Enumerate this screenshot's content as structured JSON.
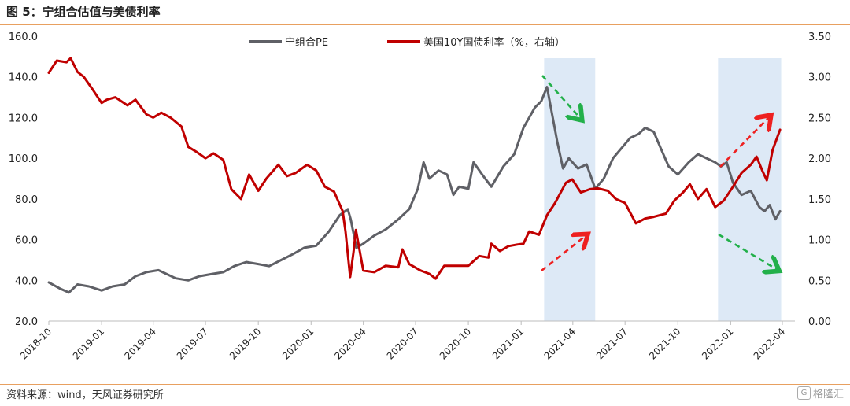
{
  "header": {
    "title": "图 5：宁组合估值与美债利率"
  },
  "footer": {
    "source": "资料来源：wind，天风证券研究所",
    "watermark": "格隆汇"
  },
  "colors": {
    "pe": "#5f6066",
    "yield": "#c00000",
    "highlight": "#dde9f6",
    "arrow_green": "#22b04a",
    "arrow_red": "#ee2020",
    "axis": "#bdbdbd"
  },
  "chart_data": {
    "type": "line",
    "title": "",
    "x_ticks": [
      "2018-10",
      "2019-01",
      "2019-04",
      "2019-07",
      "2019-10",
      "2020-01",
      "2020-04",
      "2020-07",
      "2020-10",
      "2021-01",
      "2021-04",
      "2021-07",
      "2021-10",
      "2022-01",
      "2022-04"
    ],
    "y_left": {
      "range": [
        20,
        160
      ],
      "ticks": [
        "20.0",
        "40.0",
        "60.0",
        "80.0",
        "100.0",
        "120.0",
        "140.0",
        "160.0"
      ]
    },
    "y_right": {
      "range": [
        0,
        3.5
      ],
      "ticks": [
        "0.00",
        "0.50",
        "1.00",
        "1.50",
        "2.00",
        "2.50",
        "3.00",
        "3.50"
      ]
    },
    "grid": false,
    "legend_position": "top",
    "series": [
      {
        "name": "宁组合PE",
        "axis": "left",
        "points": [
          [
            "2018-10-01",
            39
          ],
          [
            "2018-10-20",
            36
          ],
          [
            "2018-11-05",
            34
          ],
          [
            "2018-11-20",
            38
          ],
          [
            "2018-12-10",
            37
          ],
          [
            "2019-01-01",
            35
          ],
          [
            "2019-01-20",
            37
          ],
          [
            "2019-02-10",
            38
          ],
          [
            "2019-03-01",
            42
          ],
          [
            "2019-03-20",
            44
          ],
          [
            "2019-04-10",
            45
          ],
          [
            "2019-04-25",
            43
          ],
          [
            "2019-05-10",
            41
          ],
          [
            "2019-06-01",
            40
          ],
          [
            "2019-06-20",
            42
          ],
          [
            "2019-07-10",
            43
          ],
          [
            "2019-08-01",
            44
          ],
          [
            "2019-08-20",
            47
          ],
          [
            "2019-09-10",
            49
          ],
          [
            "2019-10-01",
            48
          ],
          [
            "2019-10-20",
            47
          ],
          [
            "2019-11-10",
            50
          ],
          [
            "2019-12-01",
            53
          ],
          [
            "2019-12-20",
            56
          ],
          [
            "2020-01-10",
            57
          ],
          [
            "2020-02-01",
            64
          ],
          [
            "2020-02-20",
            72
          ],
          [
            "2020-03-05",
            75
          ],
          [
            "2020-03-10",
            70
          ],
          [
            "2020-03-20",
            56
          ],
          [
            "2020-04-01",
            58
          ],
          [
            "2020-04-20",
            62
          ],
          [
            "2020-05-10",
            65
          ],
          [
            "2020-06-01",
            70
          ],
          [
            "2020-06-20",
            75
          ],
          [
            "2020-07-05",
            85
          ],
          [
            "2020-07-15",
            98
          ],
          [
            "2020-07-25",
            90
          ],
          [
            "2020-08-10",
            94
          ],
          [
            "2020-08-25",
            92
          ],
          [
            "2020-09-05",
            82
          ],
          [
            "2020-09-15",
            86
          ],
          [
            "2020-10-01",
            85
          ],
          [
            "2020-10-10",
            98
          ],
          [
            "2020-10-25",
            92
          ],
          [
            "2020-11-10",
            86
          ],
          [
            "2020-12-01",
            96
          ],
          [
            "2020-12-20",
            102
          ],
          [
            "2021-01-05",
            115
          ],
          [
            "2021-01-25",
            125
          ],
          [
            "2021-02-05",
            128
          ],
          [
            "2021-02-15",
            135
          ],
          [
            "2021-02-25",
            120
          ],
          [
            "2021-03-05",
            108
          ],
          [
            "2021-03-15",
            95
          ],
          [
            "2021-03-25",
            100
          ],
          [
            "2021-04-10",
            95
          ],
          [
            "2021-04-25",
            97
          ],
          [
            "2021-05-10",
            85
          ],
          [
            "2021-05-25",
            90
          ],
          [
            "2021-06-10",
            100
          ],
          [
            "2021-06-25",
            105
          ],
          [
            "2021-07-10",
            110
          ],
          [
            "2021-07-25",
            112
          ],
          [
            "2021-08-05",
            115
          ],
          [
            "2021-08-20",
            113
          ],
          [
            "2021-09-01",
            105
          ],
          [
            "2021-09-15",
            96
          ],
          [
            "2021-10-01",
            92
          ],
          [
            "2021-10-20",
            98
          ],
          [
            "2021-11-05",
            102
          ],
          [
            "2021-11-20",
            100
          ],
          [
            "2021-12-05",
            98
          ],
          [
            "2021-12-15",
            96
          ],
          [
            "2021-12-25",
            98
          ],
          [
            "2022-01-05",
            88
          ],
          [
            "2022-01-20",
            82
          ],
          [
            "2022-02-05",
            84
          ],
          [
            "2022-02-20",
            76
          ],
          [
            "2022-03-01",
            74
          ],
          [
            "2022-03-10",
            77
          ],
          [
            "2022-03-20",
            70
          ],
          [
            "2022-03-28",
            74
          ]
        ]
      },
      {
        "name": "美国10Y国债利率（%，右轴）",
        "axis": "right",
        "points": [
          [
            "2018-10-01",
            3.05
          ],
          [
            "2018-10-15",
            3.2
          ],
          [
            "2018-11-01",
            3.18
          ],
          [
            "2018-11-08",
            3.23
          ],
          [
            "2018-11-20",
            3.06
          ],
          [
            "2018-12-01",
            3.0
          ],
          [
            "2018-12-15",
            2.86
          ],
          [
            "2019-01-01",
            2.68
          ],
          [
            "2019-01-10",
            2.72
          ],
          [
            "2019-01-25",
            2.75
          ],
          [
            "2019-02-15",
            2.65
          ],
          [
            "2019-03-01",
            2.72
          ],
          [
            "2019-03-20",
            2.54
          ],
          [
            "2019-04-01",
            2.5
          ],
          [
            "2019-04-15",
            2.56
          ],
          [
            "2019-05-01",
            2.5
          ],
          [
            "2019-05-20",
            2.39
          ],
          [
            "2019-06-01",
            2.14
          ],
          [
            "2019-06-15",
            2.08
          ],
          [
            "2019-07-01",
            2.0
          ],
          [
            "2019-07-15",
            2.06
          ],
          [
            "2019-08-01",
            1.98
          ],
          [
            "2019-08-15",
            1.62
          ],
          [
            "2019-09-01",
            1.5
          ],
          [
            "2019-09-15",
            1.8
          ],
          [
            "2019-10-01",
            1.6
          ],
          [
            "2019-10-15",
            1.75
          ],
          [
            "2019-11-05",
            1.92
          ],
          [
            "2019-11-20",
            1.78
          ],
          [
            "2019-12-05",
            1.82
          ],
          [
            "2019-12-25",
            1.92
          ],
          [
            "2020-01-10",
            1.85
          ],
          [
            "2020-01-25",
            1.65
          ],
          [
            "2020-02-10",
            1.59
          ],
          [
            "2020-02-25",
            1.35
          ],
          [
            "2020-03-01",
            1.1
          ],
          [
            "2020-03-09",
            0.54
          ],
          [
            "2020-03-15",
            0.85
          ],
          [
            "2020-03-19",
            1.12
          ],
          [
            "2020-04-01",
            0.62
          ],
          [
            "2020-04-20",
            0.6
          ],
          [
            "2020-05-10",
            0.68
          ],
          [
            "2020-06-01",
            0.66
          ],
          [
            "2020-06-08",
            0.88
          ],
          [
            "2020-06-20",
            0.7
          ],
          [
            "2020-07-10",
            0.62
          ],
          [
            "2020-07-25",
            0.58
          ],
          [
            "2020-08-05",
            0.52
          ],
          [
            "2020-08-20",
            0.68
          ],
          [
            "2020-09-10",
            0.68
          ],
          [
            "2020-10-01",
            0.68
          ],
          [
            "2020-10-20",
            0.8
          ],
          [
            "2020-11-05",
            0.78
          ],
          [
            "2020-11-10",
            0.95
          ],
          [
            "2020-11-25",
            0.86
          ],
          [
            "2020-12-10",
            0.92
          ],
          [
            "2020-12-25",
            0.94
          ],
          [
            "2021-01-05",
            0.95
          ],
          [
            "2021-01-15",
            1.1
          ],
          [
            "2021-02-01",
            1.06
          ],
          [
            "2021-02-15",
            1.3
          ],
          [
            "2021-03-01",
            1.45
          ],
          [
            "2021-03-20",
            1.7
          ],
          [
            "2021-03-31",
            1.74
          ],
          [
            "2021-04-15",
            1.58
          ],
          [
            "2021-05-01",
            1.62
          ],
          [
            "2021-05-15",
            1.63
          ],
          [
            "2021-06-01",
            1.6
          ],
          [
            "2021-06-15",
            1.5
          ],
          [
            "2021-07-01",
            1.45
          ],
          [
            "2021-07-20",
            1.2
          ],
          [
            "2021-08-05",
            1.26
          ],
          [
            "2021-08-20",
            1.28
          ],
          [
            "2021-09-10",
            1.32
          ],
          [
            "2021-09-25",
            1.48
          ],
          [
            "2021-10-10",
            1.58
          ],
          [
            "2021-10-22",
            1.68
          ],
          [
            "2021-11-05",
            1.5
          ],
          [
            "2021-11-20",
            1.62
          ],
          [
            "2021-12-05",
            1.4
          ],
          [
            "2021-12-20",
            1.48
          ],
          [
            "2022-01-05",
            1.65
          ],
          [
            "2022-01-20",
            1.82
          ],
          [
            "2022-02-05",
            1.92
          ],
          [
            "2022-02-15",
            2.02
          ],
          [
            "2022-02-25",
            1.85
          ],
          [
            "2022-03-05",
            1.73
          ],
          [
            "2022-03-15",
            2.1
          ],
          [
            "2022-03-28",
            2.35
          ]
        ]
      }
    ],
    "highlights": [
      {
        "from": "2021-02-10",
        "to": "2021-05-10"
      },
      {
        "from": "2021-12-10",
        "to": "2022-03-30"
      }
    ],
    "annotations": [
      {
        "type": "arrow",
        "color": "green",
        "direction": "down"
      },
      {
        "type": "arrow",
        "color": "red",
        "direction": "up"
      },
      {
        "type": "arrow",
        "color": "red",
        "direction": "up"
      },
      {
        "type": "arrow",
        "color": "green",
        "direction": "down"
      }
    ]
  }
}
